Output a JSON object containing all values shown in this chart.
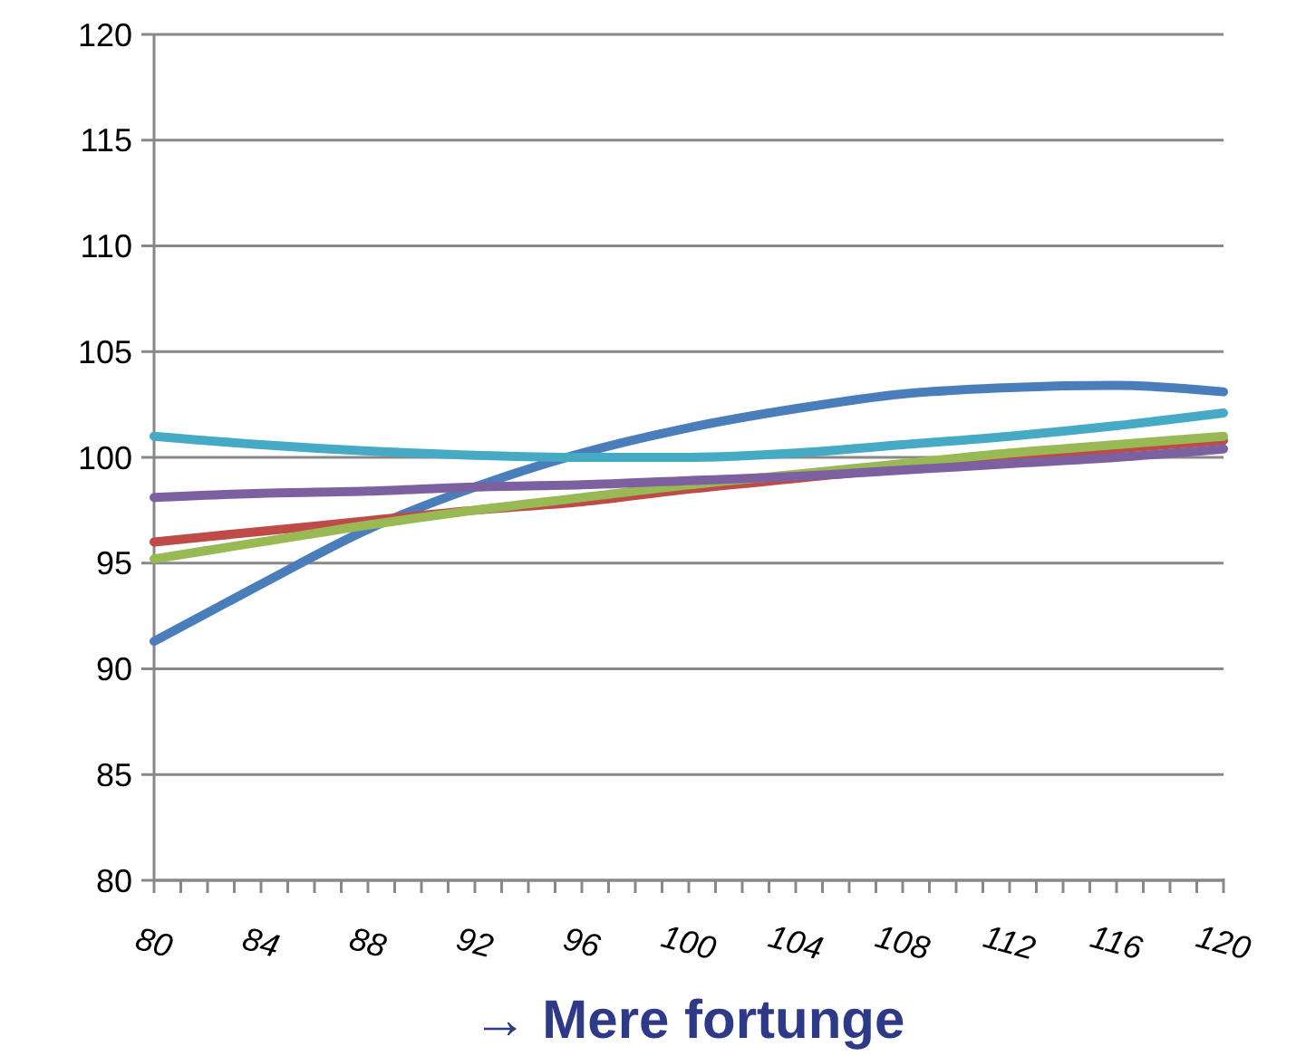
{
  "chart_data": {
    "type": "line",
    "xlabel": "→ Mere fortunge",
    "x": [
      80,
      84,
      88,
      92,
      96,
      100,
      104,
      108,
      112,
      116,
      120
    ],
    "series": [
      {
        "color": "#4a7ebb",
        "values": [
          91.3,
          94.0,
          96.6,
          98.6,
          100.2,
          101.4,
          102.3,
          103.0,
          103.3,
          103.4,
          103.1
        ]
      },
      {
        "color": "#be4b48",
        "values": [
          96.0,
          96.5,
          97.0,
          97.5,
          97.9,
          98.5,
          99.0,
          99.5,
          99.9,
          100.4,
          100.8
        ]
      },
      {
        "color": "#98b954",
        "values": [
          95.2,
          96.0,
          96.8,
          97.5,
          98.1,
          98.7,
          99.2,
          99.7,
          100.2,
          100.6,
          101.0
        ]
      },
      {
        "color": "#7d60a0",
        "values": [
          98.1,
          98.3,
          98.4,
          98.6,
          98.7,
          98.9,
          99.1,
          99.4,
          99.7,
          100.0,
          100.4
        ]
      },
      {
        "color": "#46aac5",
        "values": [
          101.0,
          100.6,
          100.3,
          100.1,
          100.0,
          100.0,
          100.2,
          100.6,
          101.0,
          101.5,
          102.1
        ]
      }
    ],
    "xlim": [
      80,
      120
    ],
    "xticks": [
      80,
      {
        "value": 81,
        "label": null
      },
      {
        "value": 82,
        "label": null
      },
      {
        "value": 83,
        "label": null
      },
      84,
      {
        "value": 85,
        "label": null
      },
      {
        "value": 86,
        "label": null
      },
      {
        "value": 87,
        "label": null
      },
      88,
      {
        "value": 89,
        "label": null
      },
      {
        "value": 90,
        "label": null
      },
      {
        "value": 91,
        "label": null
      },
      92,
      {
        "value": 93,
        "label": null
      },
      {
        "value": 94,
        "label": null
      },
      {
        "value": 95,
        "label": null
      },
      96,
      {
        "value": 97,
        "label": null
      },
      {
        "value": 98,
        "label": null
      },
      {
        "value": 99,
        "label": null
      },
      100,
      {
        "value": 101,
        "label": null
      },
      {
        "value": 102,
        "label": null
      },
      {
        "value": 103,
        "label": null
      },
      104,
      {
        "value": 105,
        "label": null
      },
      {
        "value": 106,
        "label": null
      },
      {
        "value": 107,
        "label": null
      },
      108,
      {
        "value": 109,
        "label": null
      },
      {
        "value": 110,
        "label": null
      },
      {
        "value": 111,
        "label": null
      },
      112,
      {
        "value": 113,
        "label": null
      },
      {
        "value": 114,
        "label": null
      },
      {
        "value": 115,
        "label": null
      },
      116,
      {
        "value": 117,
        "label": null
      },
      {
        "value": 118,
        "label": null
      },
      {
        "value": 119,
        "label": null
      },
      120
    ],
    "ylim": [
      80,
      120
    ],
    "yticks": [
      80,
      85,
      90,
      95,
      100,
      105,
      110,
      115,
      120
    ],
    "grid": "y",
    "marker": "none",
    "line_style": "solid"
  }
}
